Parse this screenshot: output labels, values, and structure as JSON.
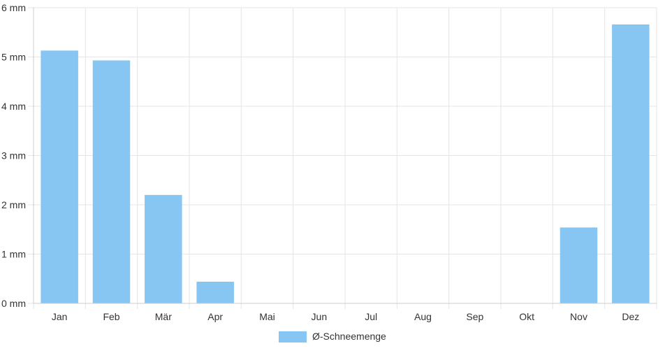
{
  "chart_data": {
    "type": "bar",
    "categories": [
      "Jan",
      "Feb",
      "Mär",
      "Apr",
      "Mai",
      "Jun",
      "Jul",
      "Aug",
      "Sep",
      "Okt",
      "Nov",
      "Dez"
    ],
    "series": [
      {
        "name": "Ø-Schneemenge",
        "values": [
          5.13,
          4.93,
          2.2,
          0.44,
          0,
          0,
          0,
          0,
          0,
          0,
          1.54,
          5.66
        ]
      }
    ],
    "y_ticks": [
      "0 mm",
      "1 mm",
      "2 mm",
      "3 mm",
      "4 mm",
      "5 mm",
      "6 mm"
    ],
    "ylim": [
      0,
      6
    ],
    "grid": true,
    "legend_position": "bottom",
    "colors": {
      "bar_fill": "#87c6f2",
      "grid": "#e5e5e5"
    }
  }
}
